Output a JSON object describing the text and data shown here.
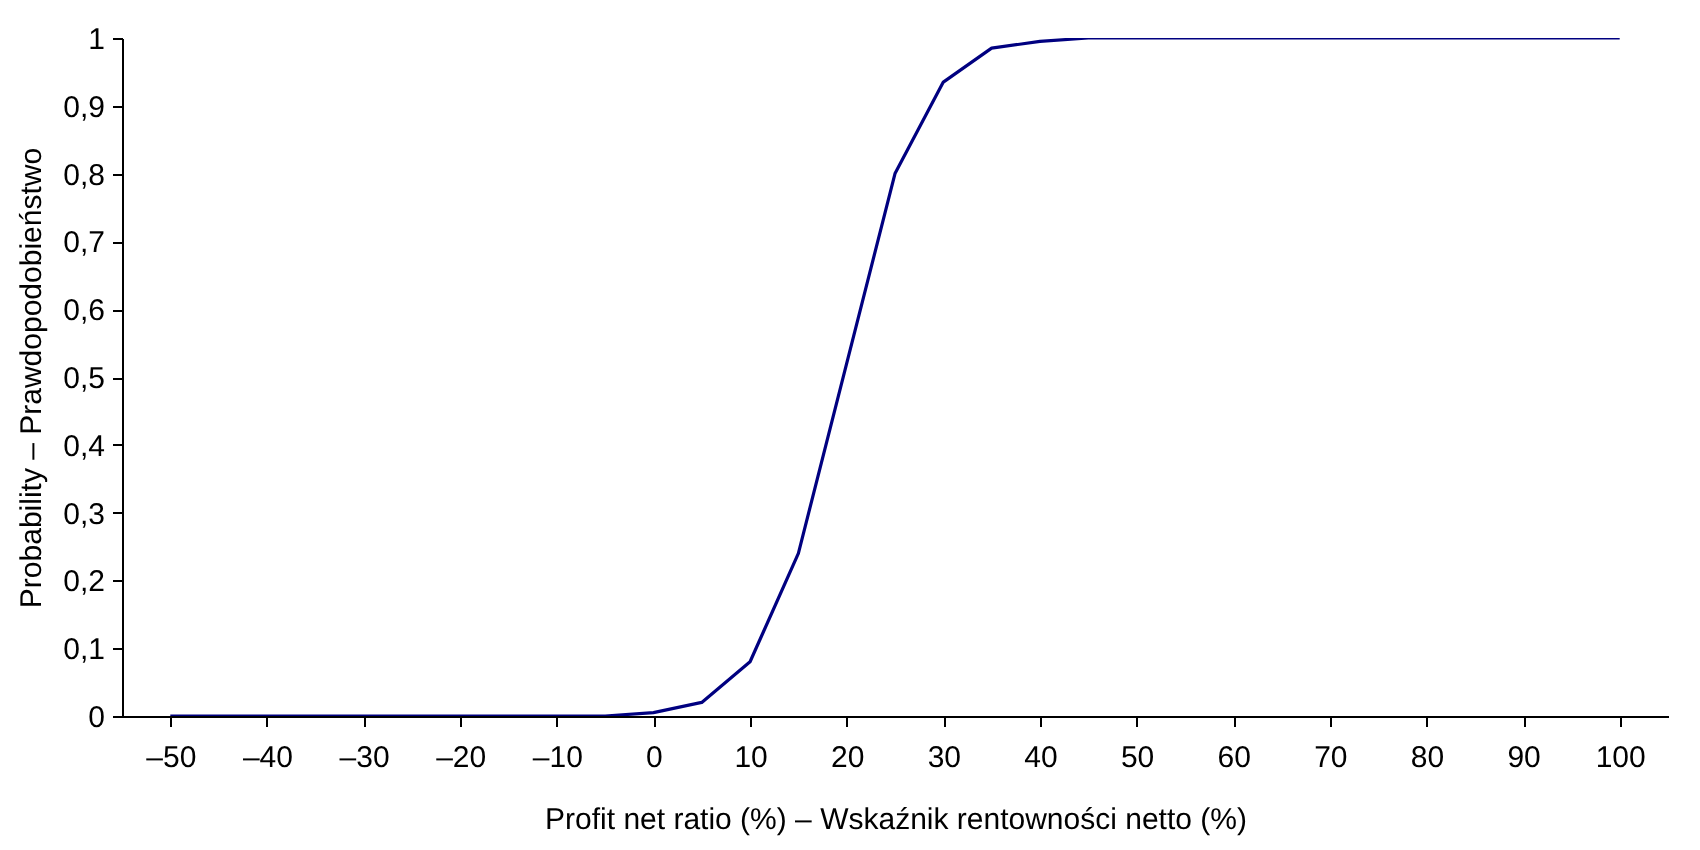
{
  "chart_data": {
    "type": "line",
    "xlabel": "Profit net ratio (%) – Wskaźnik rentowności netto (%)",
    "ylabel": "Probability – Prawdopodobieństwo",
    "x": [
      -50,
      -45,
      -40,
      -35,
      -30,
      -25,
      -20,
      -15,
      -10,
      -5,
      0,
      5,
      10,
      15,
      20,
      25,
      30,
      35,
      40,
      45,
      50,
      55,
      60,
      65,
      70,
      75,
      80,
      85,
      90,
      95,
      100
    ],
    "series": [
      {
        "color": "#000080",
        "values": [
          0,
          0,
          0,
          0,
          0,
          0,
          0,
          0,
          0,
          0,
          0.005,
          0.02,
          0.08,
          0.24,
          0.52,
          0.8,
          0.935,
          0.985,
          0.995,
          1,
          1,
          1,
          1,
          1,
          1,
          1,
          1,
          1,
          1,
          1,
          1
        ]
      }
    ],
    "xlim": [
      -55,
      105
    ],
    "xticks": [
      {
        "value": -50,
        "label": "–50"
      },
      {
        "value": -40,
        "label": "–40"
      },
      {
        "value": -30,
        "label": "–30"
      },
      {
        "value": -20,
        "label": "–20"
      },
      {
        "value": -10,
        "label": "–10"
      },
      0,
      10,
      20,
      30,
      40,
      50,
      60,
      70,
      80,
      90,
      100
    ],
    "ylim": [
      0,
      1
    ],
    "yticks": [
      0,
      {
        "value": 0.1,
        "label": "0,1"
      },
      {
        "value": 0.2,
        "label": "0,2"
      },
      {
        "value": 0.3,
        "label": "0,3"
      },
      {
        "value": 0.4,
        "label": "0,4"
      },
      {
        "value": 0.5,
        "label": "0,5"
      },
      {
        "value": 0.6,
        "label": "0,6"
      },
      {
        "value": 0.7,
        "label": "0,7"
      },
      {
        "value": 0.8,
        "label": "0,8"
      },
      {
        "value": 0.9,
        "label": "0,9"
      },
      1
    ],
    "grid": false,
    "marker": "none",
    "line_style": "solid"
  }
}
